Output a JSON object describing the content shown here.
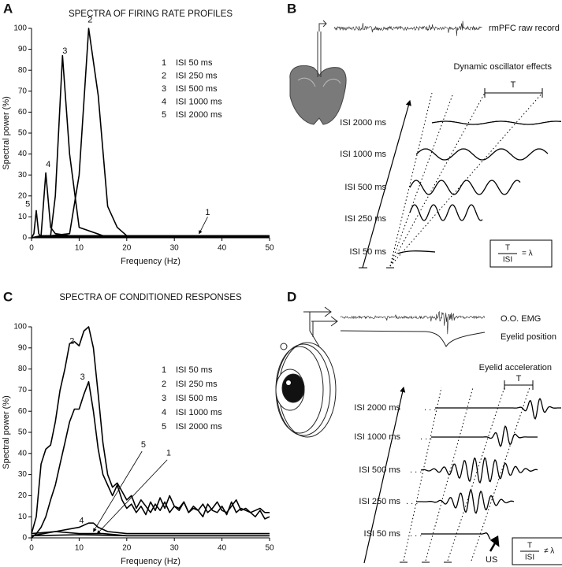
{
  "panel_labels": [
    "A",
    "B",
    "C",
    "D"
  ],
  "chart_data": [
    {
      "type": "line",
      "title": "SPECTRA OF FIRING RATE PROFILES",
      "xlabel": "Frequency (Hz)",
      "ylabel": "Spectral power (%)",
      "xlim": [
        0,
        50
      ],
      "xticks": [
        0,
        10,
        20,
        30,
        40,
        50
      ],
      "ylim": [
        0,
        100
      ],
      "yticks": [
        0,
        10,
        20,
        30,
        40,
        50,
        60,
        70,
        80,
        90,
        100
      ],
      "color": "#000000",
      "series": [
        {
          "name": "ISI 50 ms",
          "label": "1",
          "x": [
            0,
            2,
            50
          ],
          "values": [
            0,
            1,
            1
          ]
        },
        {
          "name": "ISI 250 ms",
          "label": "2",
          "x": [
            0,
            8,
            10,
            12,
            14,
            16,
            18,
            20,
            50
          ],
          "values": [
            0,
            2,
            30,
            100,
            68,
            15,
            5,
            1,
            1
          ]
        },
        {
          "name": "ISI 500 ms",
          "label": "3",
          "x": [
            0,
            4,
            5,
            6.5,
            8,
            10,
            15,
            50
          ],
          "values": [
            0,
            1,
            20,
            87,
            40,
            5,
            1,
            0.5
          ]
        },
        {
          "name": "ISI 1000 ms",
          "label": "4",
          "x": [
            0,
            2,
            3,
            4,
            5,
            8,
            50
          ],
          "values": [
            0,
            1,
            31,
            5,
            2,
            1,
            0.5
          ]
        },
        {
          "name": "ISI 2000 ms",
          "label": "5",
          "x": [
            0,
            0.5,
            1,
            1.5,
            2,
            50
          ],
          "values": [
            0,
            2,
            13,
            2,
            0.5,
            0.5
          ]
        }
      ]
    },
    {
      "type": "line",
      "title": "SPECTRA OF CONDITIONED RESPONSES",
      "xlabel": "Frequency (Hz)",
      "ylabel": "Spectral power (%)",
      "xlim": [
        0,
        50
      ],
      "xticks": [
        0,
        10,
        20,
        30,
        40,
        50
      ],
      "ylim": [
        0,
        100
      ],
      "yticks": [
        0,
        10,
        20,
        30,
        40,
        50,
        60,
        70,
        80,
        90,
        100
      ],
      "color": "#000000",
      "series": [
        {
          "name": "ISI 50 ms",
          "label": "1",
          "x": [
            0,
            10,
            20,
            30,
            40,
            50
          ],
          "values": [
            1,
            1.5,
            1,
            1,
            1,
            1
          ]
        },
        {
          "name": "ISI 250 ms",
          "label": "2",
          "x": [
            0,
            1,
            2,
            3,
            4,
            5,
            6,
            7,
            8,
            9,
            10,
            11,
            12,
            13,
            14,
            15,
            16,
            17,
            18,
            19,
            20,
            21,
            22,
            23,
            24,
            25,
            26,
            27,
            28,
            29,
            30,
            31,
            32,
            33,
            34,
            35,
            36,
            37,
            38,
            39,
            40,
            41,
            42,
            43,
            44,
            45,
            46,
            47,
            48,
            49,
            50
          ],
          "values": [
            2,
            10,
            35,
            42,
            44,
            55,
            70,
            80,
            92,
            93,
            91,
            98,
            100,
            90,
            68,
            45,
            30,
            24,
            26,
            22,
            18,
            20,
            14,
            18,
            15,
            12,
            16,
            13,
            17,
            12,
            15,
            13,
            17,
            12,
            14,
            13,
            10,
            16,
            13,
            12,
            15,
            11,
            17,
            12,
            14,
            13,
            12,
            13,
            14,
            12,
            12
          ]
        },
        {
          "name": "ISI 500 ms",
          "label": "3",
          "x": [
            0,
            1,
            2,
            3,
            4,
            5,
            6,
            7,
            8,
            9,
            10,
            11,
            12,
            13,
            14,
            15,
            16,
            17,
            18,
            19,
            20,
            21,
            22,
            23,
            24,
            25,
            26,
            27,
            28,
            29,
            30,
            31,
            32,
            33,
            34,
            35,
            36,
            37,
            38,
            39,
            40,
            41,
            42,
            43,
            44,
            45,
            46,
            47,
            48,
            49,
            50
          ],
          "values": [
            0,
            2,
            5,
            10,
            18,
            25,
            35,
            45,
            55,
            61,
            61,
            68,
            74,
            60,
            42,
            30,
            25,
            20,
            25,
            18,
            14,
            16,
            12,
            15,
            11,
            17,
            13,
            19,
            14,
            20,
            15,
            14,
            17,
            12,
            15,
            13,
            16,
            12,
            14,
            17,
            13,
            12,
            15,
            18,
            13,
            14,
            12,
            10,
            13,
            9,
            10
          ]
        },
        {
          "name": "ISI 1000 ms",
          "label": "4",
          "x": [
            0,
            5,
            10,
            12,
            13,
            14,
            16,
            20,
            50
          ],
          "values": [
            1,
            3,
            5,
            7,
            7,
            5,
            3,
            2,
            2
          ]
        },
        {
          "name": "ISI 2000 ms",
          "label": "5",
          "x": [
            0,
            5,
            10,
            15,
            20,
            50
          ],
          "values": [
            2,
            3,
            2,
            2,
            1,
            1
          ]
        }
      ]
    }
  ],
  "panel_b": {
    "record_label": "rmPFC raw record",
    "title": "Dynamic oscillator effects",
    "period_symbol": "T",
    "rows": [
      "ISI 2000 ms",
      "ISI 1000 ms",
      "ISI 500 ms",
      "ISI 250 ms",
      "ISI 50 ms"
    ],
    "formula": {
      "numerator": "T",
      "denominator": "ISI",
      "relation": "= λ"
    }
  },
  "panel_d": {
    "traces": [
      "O.O. EMG",
      "Eyelid position"
    ],
    "title": "Eyelid acceleration",
    "period_symbol": "T",
    "rows": [
      "ISI 2000 ms",
      "ISI 1000 ms",
      "ISI 500 ms",
      "ISI 250 ms",
      "ISI 50 ms"
    ],
    "stimulus": "US",
    "formula": {
      "numerator": "T",
      "denominator": "ISI",
      "relation": "≠ λ"
    }
  }
}
